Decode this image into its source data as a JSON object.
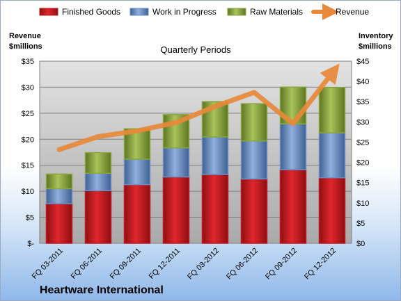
{
  "chart_data": {
    "type": "bar",
    "stacked": true,
    "subtitle": "Quarterly Periods",
    "company": "Heartware International",
    "left_axis_title": [
      "Revenue",
      "$millions"
    ],
    "right_axis_title": [
      "Inventory",
      "$millions"
    ],
    "categories": [
      "FQ 03-2011",
      "FQ 06-2011",
      "FQ 09-2011",
      "FQ 12-2011",
      "FQ 03-2012",
      "FQ 06-2012",
      "FQ 09-2012",
      "FQ 12-2012"
    ],
    "left_ticks": [
      "$-",
      "$5",
      "$10",
      "$15",
      "$20",
      "$25",
      "$30",
      "$35"
    ],
    "right_ticks": [
      "$0",
      "$5",
      "$10",
      "$15",
      "$20",
      "$25",
      "$30",
      "$35",
      "$40",
      "$45"
    ],
    "left_ylim": [
      0,
      35
    ],
    "right_ylim": [
      0,
      45
    ],
    "grid": true,
    "legend_position": "top",
    "series": [
      {
        "name": "Finished Goods",
        "axis": "right",
        "color": "#c0191f",
        "values": [
          9.8,
          13.0,
          14.5,
          16.4,
          17.0,
          15.9,
          18.2,
          16.2
        ]
      },
      {
        "name": "Work in Progress",
        "axis": "right",
        "color": "#6a8fc6",
        "values": [
          3.7,
          4.3,
          6.3,
          7.2,
          9.3,
          9.4,
          11.3,
          11.1
        ]
      },
      {
        "name": "Raw Materials",
        "axis": "right",
        "color": "#8aa63c",
        "values": [
          3.6,
          5.1,
          7.5,
          8.2,
          8.7,
          9.2,
          9.1,
          11.2
        ]
      },
      {
        "name": "Revenue",
        "axis": "left",
        "type": "line",
        "color": "#e8893a",
        "values": [
          18.0,
          20.5,
          21.6,
          23.2,
          26.3,
          29.0,
          23.0,
          32.7
        ]
      }
    ]
  }
}
